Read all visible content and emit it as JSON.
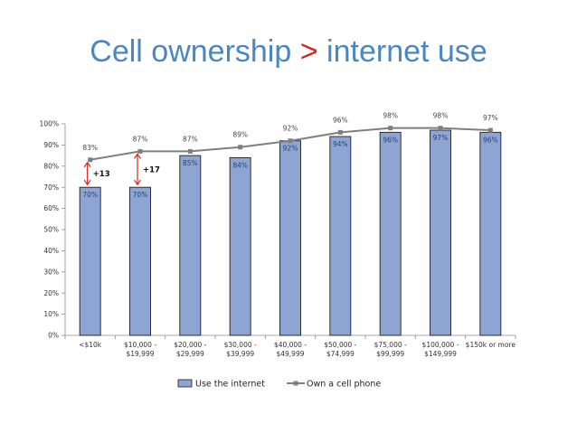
{
  "title": {
    "part1": "Cell ownership",
    "operator": ">",
    "part2": "internet use"
  },
  "chart_data": {
    "type": "bar",
    "categories": [
      [
        "<$10k"
      ],
      [
        "$10,000 -",
        "$19,999"
      ],
      [
        "$20,000 -",
        "$29,999"
      ],
      [
        "$30,000 -",
        "$39,999"
      ],
      [
        "$40,000 -",
        "$49,999"
      ],
      [
        "$50,000 -",
        "$74,999"
      ],
      [
        "$75,000 -",
        "$99,999"
      ],
      [
        "$100,000 -",
        "$149,999"
      ],
      [
        "$150k or more"
      ]
    ],
    "ylim": [
      0,
      100
    ],
    "yticks": [
      0,
      10,
      20,
      30,
      40,
      50,
      60,
      70,
      80,
      90,
      100
    ],
    "ytick_format": "%",
    "grid": false,
    "legend_position": "bottom",
    "series": [
      {
        "name": "Use the internet",
        "type": "bar",
        "color": "#8ea5d3",
        "values": [
          70,
          70,
          85,
          84,
          92,
          94,
          96,
          97,
          96
        ],
        "labels": [
          "70%",
          "70%",
          "85%",
          "84%",
          "92%",
          "94%",
          "96%",
          "97%",
          "96%"
        ]
      },
      {
        "name": "Own a cell phone",
        "type": "line",
        "color": "#7f7f7f",
        "values": [
          83,
          87,
          87,
          89,
          92,
          96,
          98,
          98,
          97
        ],
        "labels": [
          "83%",
          "87%",
          "87%",
          "89%",
          "92%",
          "96%",
          "98%",
          "98%",
          "97%"
        ]
      }
    ],
    "annotations": [
      {
        "category_index": 0,
        "from": 70,
        "to": 83,
        "text": "+13",
        "color": "#d8241c"
      },
      {
        "category_index": 1,
        "from": 70,
        "to": 87,
        "text": "+17",
        "color": "#d8241c"
      }
    ]
  }
}
